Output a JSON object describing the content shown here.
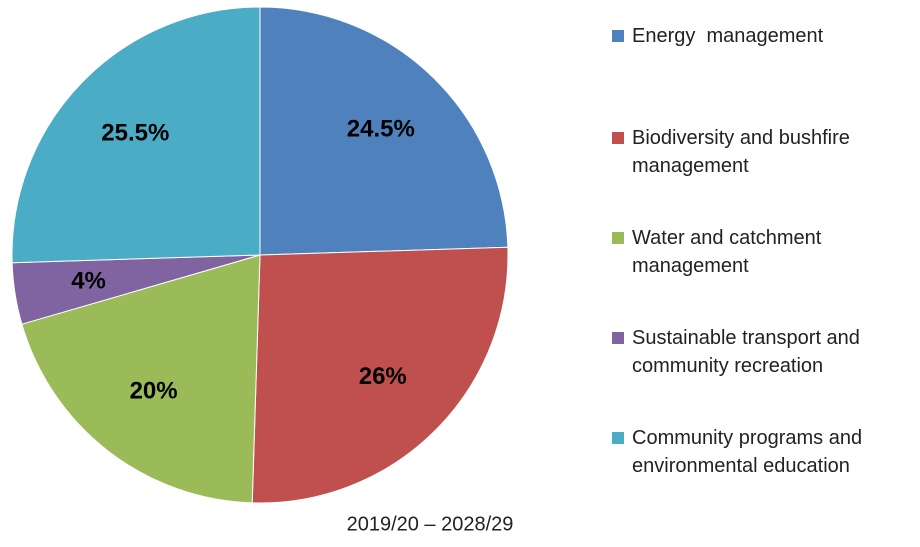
{
  "chart_data": {
    "type": "pie",
    "subtitle": "2019/20 – 2028/29",
    "categories": [
      "Energy  management",
      "Biodiversity and bushfire management",
      "Water and catchment management",
      "Sustainable transport and community recreation",
      "Community programs and environmental education"
    ],
    "values": [
      24.5,
      26,
      20,
      4,
      25.5
    ],
    "value_labels": [
      "24.5%",
      "26%",
      "20%",
      "4%",
      "25.5%"
    ],
    "colors": [
      "#4F81BD",
      "#C0504D",
      "#9BBB59",
      "#8064A2",
      "#4BACC6"
    ],
    "legend": "right"
  }
}
